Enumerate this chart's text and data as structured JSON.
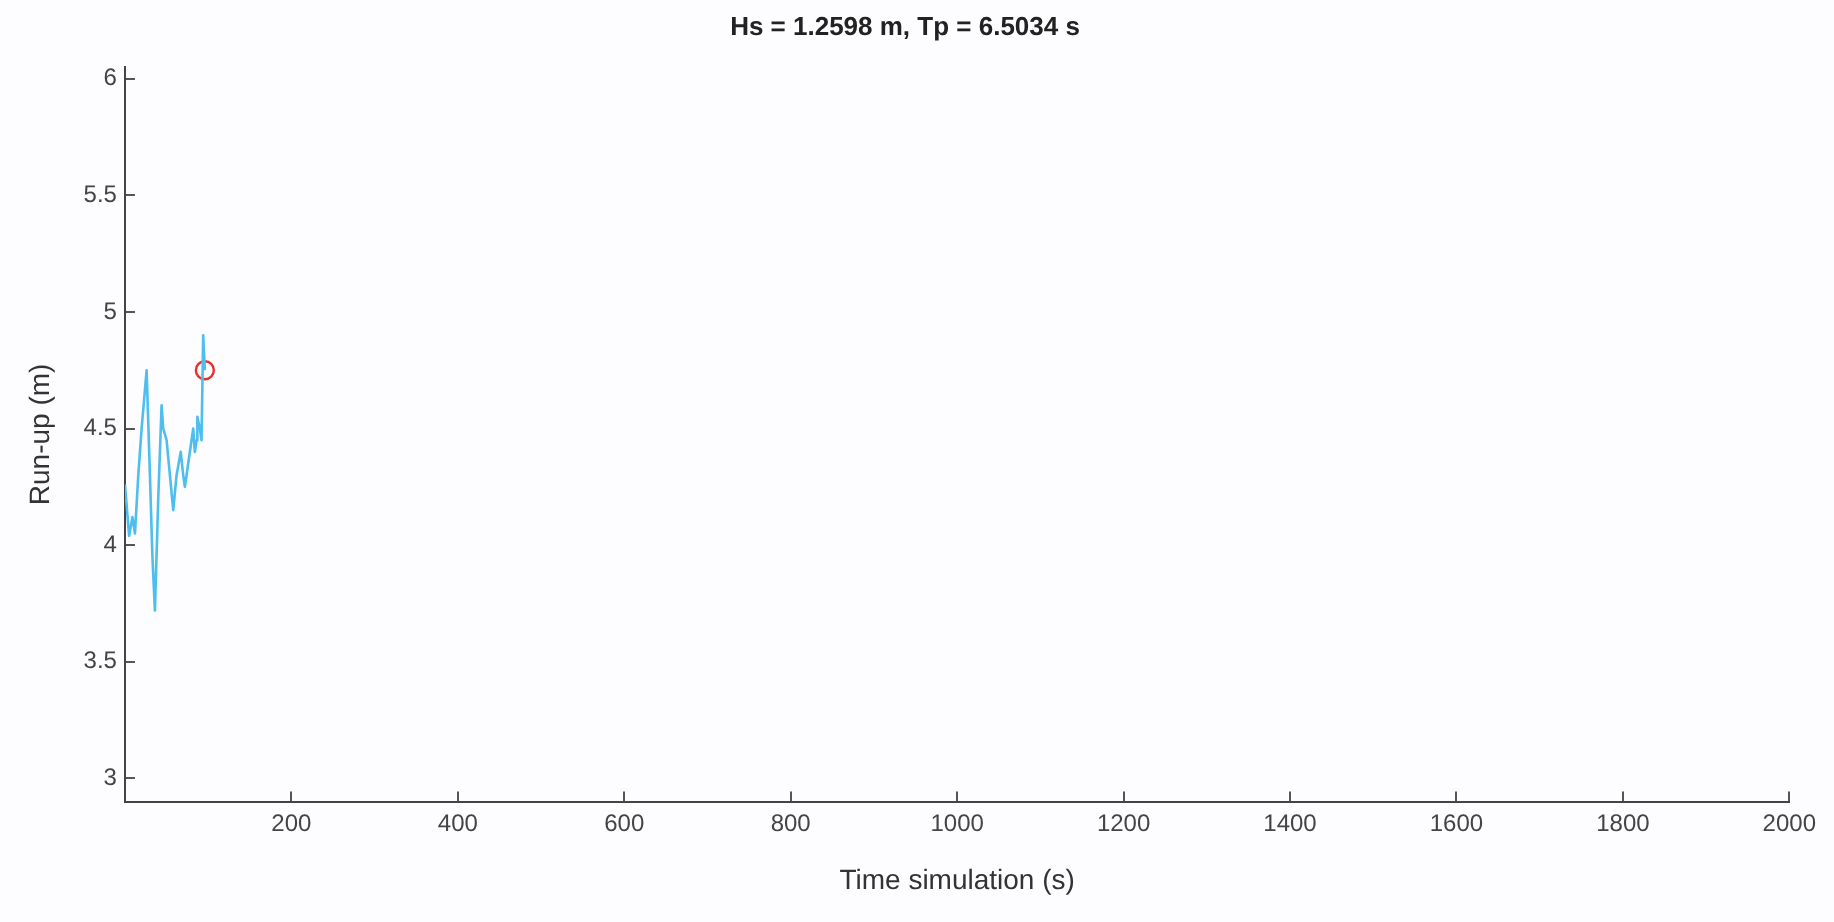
{
  "chart_data": {
    "type": "line",
    "title": "Hs = 1.2598 m, Tp = 6.5034 s",
    "xlabel": "Time simulation (s)",
    "ylabel": "Run-up (m)",
    "xlim": [
      0,
      2000
    ],
    "xticks": [
      200,
      400,
      600,
      800,
      1000,
      1200,
      1400,
      1600,
      1800,
      2000
    ],
    "ylim": [
      2.9,
      6.05
    ],
    "yticks": [
      3,
      3.5,
      4,
      4.5,
      5,
      5.5,
      6
    ],
    "grid": false,
    "legend": false,
    "series": [
      {
        "color": "#4dbeee",
        "marker": "none",
        "x": [
          0,
          5,
          9,
          12,
          16,
          20,
          26,
          30,
          33,
          36,
          40,
          44,
          46,
          50,
          54,
          58,
          62,
          67,
          70,
          72,
          76,
          80,
          82,
          84,
          86,
          87,
          90,
          92,
          94,
          96
        ],
        "values": [
          4.26,
          4.04,
          4.12,
          4.05,
          4.3,
          4.5,
          4.75,
          4.3,
          3.95,
          3.72,
          4.2,
          4.6,
          4.5,
          4.45,
          4.3,
          4.15,
          4.3,
          4.4,
          4.3,
          4.25,
          4.35,
          4.45,
          4.5,
          4.4,
          4.45,
          4.55,
          4.5,
          4.45,
          4.9,
          4.75
        ]
      },
      {
        "type": "scatter",
        "color": "#e8302a",
        "marker": "circle",
        "x": [
          96
        ],
        "values": [
          4.75
        ]
      }
    ]
  }
}
